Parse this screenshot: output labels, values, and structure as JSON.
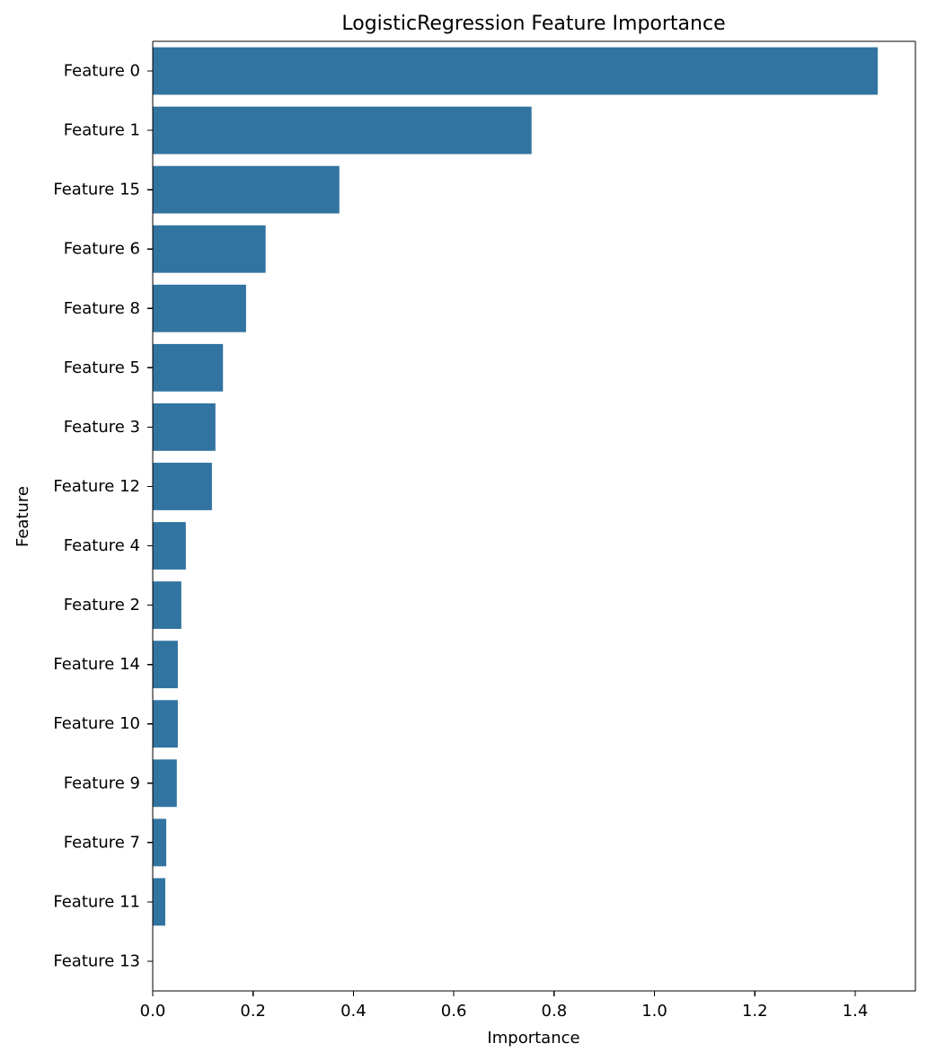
{
  "chart_data": {
    "type": "bar",
    "orientation": "horizontal",
    "title": "LogisticRegression Feature Importance",
    "xlabel": "Importance",
    "ylabel": "Feature",
    "categories": [
      "Feature 0",
      "Feature 1",
      "Feature 15",
      "Feature 6",
      "Feature 8",
      "Feature 5",
      "Feature 3",
      "Feature 12",
      "Feature 4",
      "Feature 2",
      "Feature 14",
      "Feature 10",
      "Feature 9",
      "Feature 7",
      "Feature 11",
      "Feature 13"
    ],
    "values": [
      1.445,
      0.755,
      0.372,
      0.225,
      0.186,
      0.14,
      0.125,
      0.118,
      0.066,
      0.057,
      0.05,
      0.05,
      0.048,
      0.027,
      0.025,
      0.0
    ],
    "xlim": [
      0.0,
      1.52
    ],
    "xticks": [
      0.0,
      0.2,
      0.4,
      0.6,
      0.8,
      1.0,
      1.2,
      1.4
    ],
    "xtick_labels": [
      "0.0",
      "0.2",
      "0.4",
      "0.6",
      "0.8",
      "1.0",
      "1.2",
      "1.4"
    ],
    "grid": false,
    "bar_color": "#3274a1"
  }
}
